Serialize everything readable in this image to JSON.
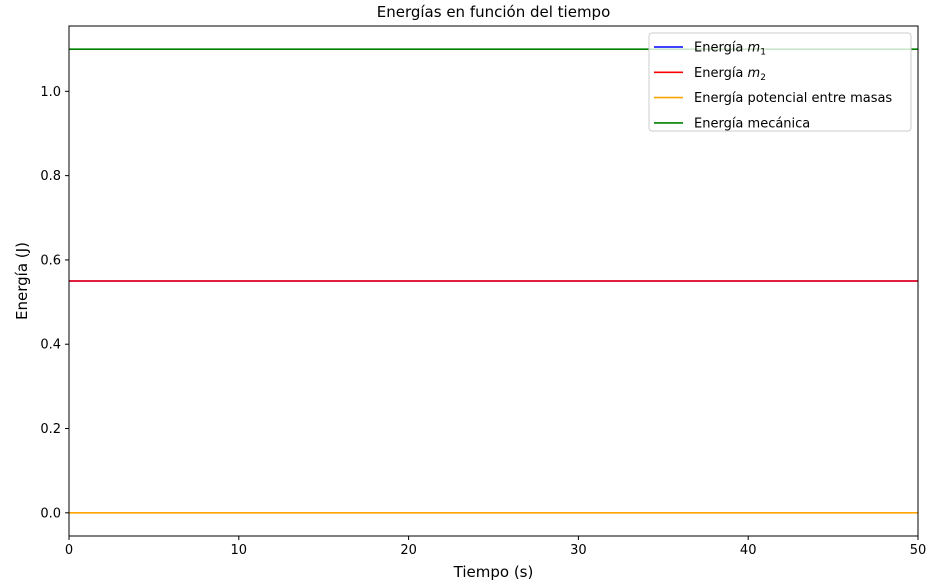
{
  "chart_data": {
    "type": "line",
    "title": "Energías en función del tiempo",
    "xlabel": "Tiempo (s)",
    "ylabel": "Energía (J)",
    "xlim": [
      0,
      50
    ],
    "ylim": [
      -0.055,
      1.155
    ],
    "x_ticks": [
      0,
      10,
      20,
      30,
      40,
      50
    ],
    "x_tick_labels": [
      "0",
      "10",
      "20",
      "30",
      "40",
      "50"
    ],
    "y_ticks": [
      0.0,
      0.2,
      0.4,
      0.6,
      0.8,
      1.0
    ],
    "y_tick_labels": [
      "0.0",
      "0.2",
      "0.4",
      "0.6",
      "0.8",
      "1.0"
    ],
    "grid": false,
    "legend_position": "top-right",
    "series": [
      {
        "name": "Energía m1",
        "legend_base": "Energía ",
        "legend_var": "m",
        "legend_sub": "1",
        "color": "#0000ff",
        "x": [
          0,
          50
        ],
        "y": [
          0.55,
          0.55
        ]
      },
      {
        "name": "Energía m2",
        "legend_base": "Energía ",
        "legend_var": "m",
        "legend_sub": "2",
        "color": "#ff0000",
        "x": [
          0,
          50
        ],
        "y": [
          0.55,
          0.55
        ]
      },
      {
        "name": "Energía potencial entre masas",
        "legend_base": "Energía potencial entre masas",
        "legend_var": "",
        "legend_sub": "",
        "color": "#ffa500",
        "x": [
          0,
          50
        ],
        "y": [
          0.0,
          0.0
        ]
      },
      {
        "name": "Energía mecánica",
        "legend_base": "Energía mecánica",
        "legend_var": "",
        "legend_sub": "",
        "color": "#008000",
        "x": [
          0,
          50
        ],
        "y": [
          1.1,
          1.1
        ]
      }
    ]
  }
}
